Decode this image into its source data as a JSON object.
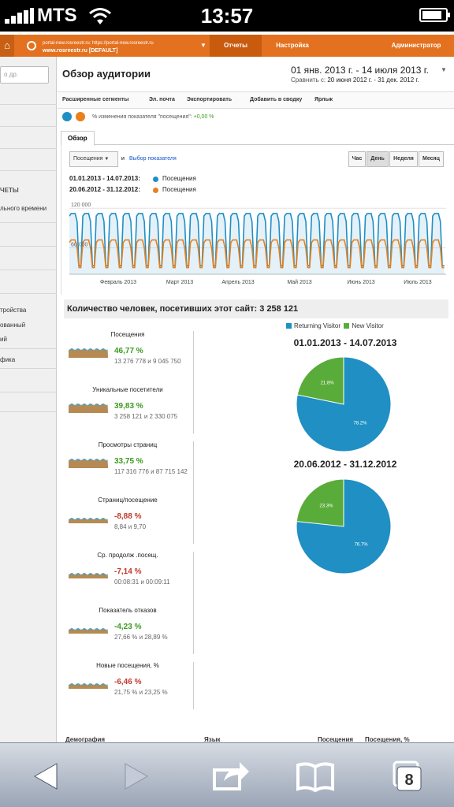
{
  "status_bar": {
    "carrier": "MTS",
    "time": "13:57"
  },
  "ga_header": {
    "account_line1": "portal-new.rosreestr.ru: https://portal-new.rosreestr.ru",
    "account_line2": "www.rosreestr.ru [DEFAULT]",
    "nav": {
      "reports": "Отчеты",
      "settings": "Настройка",
      "admin": "Администратор"
    }
  },
  "sidebar": {
    "search_placeholder": "о др.",
    "section_header": "ЧЕТЫ",
    "item_realtime": "льного времени",
    "item_devices": "тройства",
    "item_custom": "ованный",
    "item_ii": "ий",
    "item_traffic": "фика"
  },
  "report": {
    "title": "Обзор аудитории",
    "date_range": "01 янв. 2013 г. - 14 июля 2013 г.",
    "compare_label": "Сравнить с:",
    "compare_range": "20 июня 2012 г. - 31 дек. 2012 г."
  },
  "toolbar": {
    "advanced_segments": "Расширенные сегменты",
    "email": "Эл. почта",
    "export": "Экспортировать",
    "add_dashboard": "Добавить в сводку",
    "shortcut": "Ярлык"
  },
  "segments": {
    "text": "% изменения показателя \"посещения\":",
    "value": "+0,00 %"
  },
  "tabs": {
    "overview": "Обзор"
  },
  "chart_controls": {
    "metric": "Посещения",
    "and": "и",
    "select_metric": "Выбор показателя",
    "granularity": [
      "Час",
      "День",
      "Неделя",
      "Месяц"
    ]
  },
  "legend": {
    "period1": "01.01.2013 - 14.07.2013:",
    "period2": "20.06.2012 - 31.12.2012:",
    "series_label": "Посещения"
  },
  "colors": {
    "blue": "#1f8fc4",
    "orange": "#e8801e",
    "green": "#5aac3a",
    "header_orange": "#e3711f"
  },
  "chart_data": {
    "type": "line",
    "y_ticks": [
      "120 000",
      "60 000"
    ],
    "ylim": [
      20000,
      125000
    ],
    "x_labels": [
      "Февраль 2013",
      "Март 2013",
      "Апрель 2013",
      "Май 2013",
      "Июнь 2013",
      "Июль 2013"
    ],
    "series": [
      {
        "name": "01.01.2013 - 14.07.2013",
        "color": "#1f8fc4",
        "weekday_high": 112000,
        "weekend_low": 33000,
        "weeks": 28
      },
      {
        "name": "20.06.2012 - 31.12.2012",
        "color": "#e8801e",
        "weekday_high": 72000,
        "weekend_low": 30000,
        "weeks": 28
      }
    ]
  },
  "summary": {
    "label": "Количество человек, посетивших этот сайт: 3 258 121"
  },
  "kpis": [
    {
      "name": "Посещения",
      "pct": "46,77 %",
      "values": "13 276 778 и 9 045 750",
      "trend": "up"
    },
    {
      "name": "Уникальные посетители",
      "pct": "39,83 %",
      "values": "3 258 121 и 2 330 075",
      "trend": "up"
    },
    {
      "name": "Просмотры страниц",
      "pct": "33,75 %",
      "values": "117 316 776 и 87 715 142",
      "trend": "up"
    },
    {
      "name": "Страниц/посещение",
      "pct": "-8,88 %",
      "values": "8,84 и 9,70",
      "trend": "down"
    },
    {
      "name": "Ср. продолж .посещ.",
      "pct": "-7,14 %",
      "values": "00:08:31 и 00:09:11",
      "trend": "down"
    },
    {
      "name": "Показатель отказов",
      "pct": "-4,23 %",
      "values": "27,66 % и 28,89 %",
      "trend": "up"
    },
    {
      "name": "Новые посещения, %",
      "pct": "-6,46 %",
      "values": "21,75 % и 23,25 %",
      "trend": "down"
    }
  ],
  "pie_legend": {
    "returning": "Returning Visitor",
    "new": "New Visitor"
  },
  "pies": [
    {
      "title": "01.01.2013 - 14.07.2013",
      "returning": 78.2,
      "new": 21.8,
      "returning_label": "78.2%",
      "new_label": "21.8%"
    },
    {
      "title": "20.06.2012 - 31.12.2012",
      "returning": 76.7,
      "new": 23.3,
      "returning_label": "76.7%",
      "new_label": "23.3%"
    }
  ],
  "table_headers": {
    "demography": "Демография",
    "language": "Язык",
    "visits": "Посещения",
    "visits_pct": "Посещения, %"
  },
  "safari": {
    "tabs_count": "8"
  }
}
